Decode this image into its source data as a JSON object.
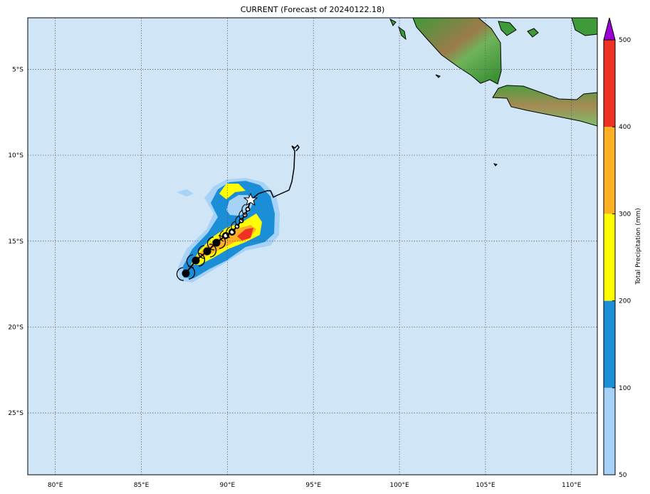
{
  "title": "CURRENT (Forecast of 20240122.18)",
  "map": {
    "lon_range": [
      78.4,
      111.5
    ],
    "lat_range": [
      -28.6,
      -2.0
    ],
    "ocean_color": "#d0e6f6",
    "gridlines": true,
    "lon_ticks": [
      {
        "value": 80,
        "label": "80°E"
      },
      {
        "value": 85,
        "label": "85°E"
      },
      {
        "value": 90,
        "label": "90°E"
      },
      {
        "value": 95,
        "label": "95°E"
      },
      {
        "value": 100,
        "label": "100°E"
      },
      {
        "value": 105,
        "label": "105°E"
      },
      {
        "value": 110,
        "label": "110°E"
      }
    ],
    "lat_ticks": [
      {
        "value": -5,
        "label": "5°S"
      },
      {
        "value": -10,
        "label": "10°S"
      },
      {
        "value": -15,
        "label": "15°S"
      },
      {
        "value": -20,
        "label": "20°S"
      },
      {
        "value": -25,
        "label": "25°S"
      }
    ]
  },
  "colorbar": {
    "label": "Total Precipitation (mm)",
    "levels": [
      {
        "from": 50,
        "to": 100,
        "color": "#a6d2f7"
      },
      {
        "from": 100,
        "to": 200,
        "color": "#1a8fd8"
      },
      {
        "from": 200,
        "to": 300,
        "color": "#ffff00"
      },
      {
        "from": 300,
        "to": 400,
        "color": "#fdb023"
      },
      {
        "from": 400,
        "to": 500,
        "color": "#ee3124"
      }
    ],
    "extend_color": "#9b00d4",
    "tick_labels": [
      "50",
      "100",
      "200",
      "300",
      "400",
      "500"
    ]
  }
}
